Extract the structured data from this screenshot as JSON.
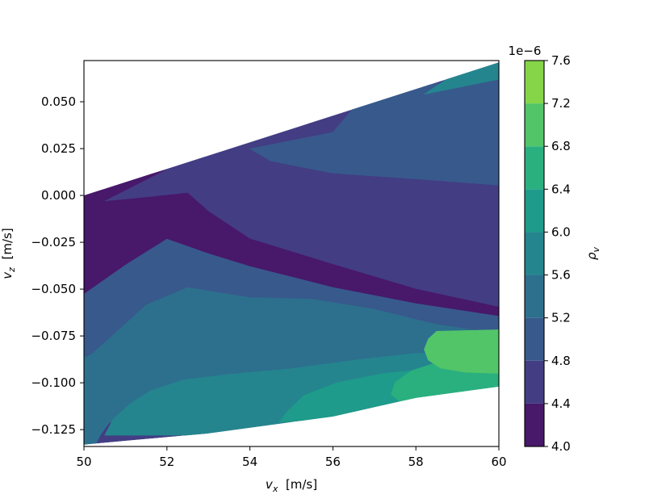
{
  "chart_data": {
    "type": "heatmap",
    "subtype": "filled-contour",
    "xlabel": {
      "var": "v",
      "sub": "x",
      "unit": "[m/s]"
    },
    "ylabel": {
      "var": "v",
      "sub": "z",
      "unit": "[m/s]"
    },
    "xlim": [
      50,
      60
    ],
    "ylim": [
      -0.134,
      0.072
    ],
    "x_ticks": [
      "50",
      "52",
      "54",
      "56",
      "58",
      "60"
    ],
    "x_tick_values": [
      50,
      52,
      54,
      56,
      58,
      60
    ],
    "y_ticks": [
      "0.050",
      "0.025",
      "0.000",
      "−0.025",
      "−0.050",
      "−0.075",
      "−0.100",
      "−0.125"
    ],
    "y_tick_values": [
      0.05,
      0.025,
      0.0,
      -0.025,
      -0.05,
      -0.075,
      -0.1,
      -0.125
    ],
    "colorbar": {
      "label": {
        "var": "ρ",
        "sub": "v"
      },
      "offset_text": "1e−6",
      "levels": [
        4.0,
        4.4,
        4.8,
        5.2,
        5.6,
        6.0,
        6.4,
        6.8,
        7.2,
        7.6
      ],
      "tick_labels": [
        "4.0",
        "4.4",
        "4.8",
        "5.2",
        "5.6",
        "6.0",
        "6.4",
        "6.8",
        "7.2",
        "7.6"
      ],
      "colors": [
        "#48186a",
        "#433d84",
        "#38598c",
        "#2d708e",
        "#25858e",
        "#1e9b8a",
        "#2ab07f",
        "#52c569",
        "#86d549",
        "#c2df23"
      ]
    },
    "domain_boundary": {
      "top": [
        [
          50,
          0.0
        ],
        [
          60,
          0.071
        ]
      ],
      "bottom": [
        [
          50,
          -0.133
        ],
        [
          51,
          -0.131
        ],
        [
          53,
          -0.127
        ],
        [
          55,
          -0.121
        ],
        [
          56,
          -0.118
        ],
        [
          57,
          -0.113
        ],
        [
          58,
          -0.108
        ],
        [
          59,
          -0.105
        ],
        [
          60,
          -0.102
        ]
      ]
    },
    "bands": [
      {
        "level": 4.0,
        "points": [
          [
            50,
            0.0
          ],
          [
            51,
            0.0078
          ],
          [
            52,
            0.0138
          ],
          [
            52.5,
            0.0016
          ],
          [
            53,
            -0.0082
          ],
          [
            54,
            -0.0229
          ],
          [
            56,
            -0.0365
          ],
          [
            58,
            -0.0497
          ],
          [
            60,
            -0.0593
          ],
          [
            60,
            -0.0645
          ],
          [
            58,
            -0.0577
          ],
          [
            56,
            -0.0491
          ],
          [
            54,
            -0.0379
          ],
          [
            53,
            -0.0311
          ],
          [
            52,
            -0.0233
          ],
          [
            51,
            -0.0371
          ],
          [
            50,
            -0.0527
          ]
        ]
      },
      {
        "level": 4.4,
        "points": [
          [
            50.5,
            -0.003
          ],
          [
            52,
            0.0138
          ],
          [
            53,
            0.0175
          ],
          [
            54,
            0.0249
          ],
          [
            54.5,
            0.0184
          ],
          [
            56,
            0.0119
          ],
          [
            58,
            0.0088
          ],
          [
            60,
            0.0054
          ],
          [
            60,
            -0.0593
          ],
          [
            58,
            -0.0497
          ],
          [
            56,
            -0.0365
          ],
          [
            54,
            -0.0229
          ],
          [
            53,
            -0.0082
          ],
          [
            52.5,
            0.0016
          ],
          [
            51.5,
            -0.0008
          ]
        ]
      },
      {
        "level": 4.8,
        "points": [
          [
            50,
            -0.0527
          ],
          [
            51,
            -0.0371
          ],
          [
            52,
            -0.0233
          ],
          [
            53,
            -0.0311
          ],
          [
            54,
            -0.0379
          ],
          [
            56,
            -0.0491
          ],
          [
            58,
            -0.0577
          ],
          [
            60,
            -0.0645
          ],
          [
            60,
            -0.0738
          ],
          [
            58.5,
            -0.0689
          ],
          [
            57,
            -0.0608
          ],
          [
            55.5,
            -0.0554
          ],
          [
            54,
            -0.0545
          ],
          [
            52.5,
            -0.0492
          ],
          [
            51.5,
            -0.0585
          ],
          [
            50.8,
            -0.0726
          ],
          [
            50.2,
            -0.0845
          ],
          [
            50,
            -0.0868
          ]
        ]
      },
      {
        "level": 4.8,
        "points": [
          [
            54,
            0.0249
          ],
          [
            56,
            0.0337
          ],
          [
            56.5,
            0.0468
          ],
          [
            58,
            0.0578
          ],
          [
            60,
            0.0657
          ],
          [
            60,
            0.0054
          ],
          [
            58,
            0.0088
          ],
          [
            56,
            0.0119
          ],
          [
            54.5,
            0.0184
          ]
        ]
      },
      {
        "level": 5.2,
        "points": [
          [
            50,
            -0.0868
          ],
          [
            50.2,
            -0.0845
          ],
          [
            50.8,
            -0.0726
          ],
          [
            51.5,
            -0.0585
          ],
          [
            52.5,
            -0.0492
          ],
          [
            54,
            -0.0545
          ],
          [
            55.5,
            -0.0554
          ],
          [
            57,
            -0.0608
          ],
          [
            58.5,
            -0.0689
          ],
          [
            60,
            -0.0738
          ],
          [
            60,
            -0.0839
          ],
          [
            58.5,
            -0.0869
          ],
          [
            57.2,
            -0.0885
          ],
          [
            56.3,
            -0.0899
          ],
          [
            55.5,
            -0.0939
          ],
          [
            54.5,
            -0.0999
          ],
          [
            53.5,
            -0.1047
          ],
          [
            52.5,
            -0.1095
          ],
          [
            51.5,
            -0.1128
          ],
          [
            51,
            -0.1163
          ],
          [
            50.6,
            -0.1216
          ],
          [
            50.4,
            -0.1277
          ],
          [
            50.3,
            -0.132
          ],
          [
            50,
            -0.133
          ]
        ]
      },
      {
        "level": 5.6,
        "points": [
          [
            58.2,
            0.054
          ],
          [
            60,
            0.062
          ],
          [
            60,
            0.071
          ],
          [
            59,
            0.066
          ]
        ]
      },
      {
        "level": 5.6,
        "points": [
          [
            50.5,
            -0.128
          ],
          [
            50.7,
            -0.1195
          ],
          [
            51.1,
            -0.1115
          ],
          [
            51.6,
            -0.1043
          ],
          [
            52.4,
            -0.0985
          ],
          [
            53.5,
            -0.0955
          ],
          [
            55,
            -0.0925
          ],
          [
            56.7,
            -0.0874
          ],
          [
            58,
            -0.0843
          ],
          [
            60,
            -0.0839
          ],
          [
            60,
            -0.0965
          ],
          [
            58.6,
            -0.0955
          ],
          [
            57.3,
            -0.0965
          ],
          [
            56.5,
            -0.0995
          ],
          [
            55.8,
            -0.1045
          ],
          [
            55.3,
            -0.1105
          ],
          [
            55.1,
            -0.1161
          ],
          [
            55,
            -0.121
          ],
          [
            53,
            -0.127
          ],
          [
            52.5,
            -0.128
          ]
        ]
      },
      {
        "level": 6.0,
        "points": [
          [
            54.7,
            -0.121
          ],
          [
            54.9,
            -0.1153
          ],
          [
            55.3,
            -0.1068
          ],
          [
            56.1,
            -0.0999
          ],
          [
            57.2,
            -0.0951
          ],
          [
            58.7,
            -0.0918
          ],
          [
            60,
            -0.0907
          ],
          [
            60,
            -0.102
          ],
          [
            59,
            -0.105
          ],
          [
            58,
            -0.108
          ],
          [
            57,
            -0.113
          ],
          [
            56,
            -0.118
          ],
          [
            55.5,
            -0.12
          ]
        ]
      },
      {
        "level": 6.4,
        "points": [
          [
            59.5,
            -0.0855
          ],
          [
            60,
            -0.0855
          ],
          [
            60,
            -0.102
          ],
          [
            58.6,
            -0.1072
          ],
          [
            57.6,
            -0.1097
          ],
          [
            57.4,
            -0.1061
          ],
          [
            57.5,
            -0.0998
          ],
          [
            57.9,
            -0.0935
          ],
          [
            58.6,
            -0.0885
          ]
        ]
      },
      {
        "level": 6.8,
        "points": [
          [
            58.5,
            -0.0725
          ],
          [
            60,
            -0.0717
          ],
          [
            60,
            -0.095
          ],
          [
            59.2,
            -0.0944
          ],
          [
            58.6,
            -0.0922
          ],
          [
            58.3,
            -0.0879
          ],
          [
            58.2,
            -0.0822
          ],
          [
            58.3,
            -0.0766
          ]
        ]
      }
    ]
  }
}
